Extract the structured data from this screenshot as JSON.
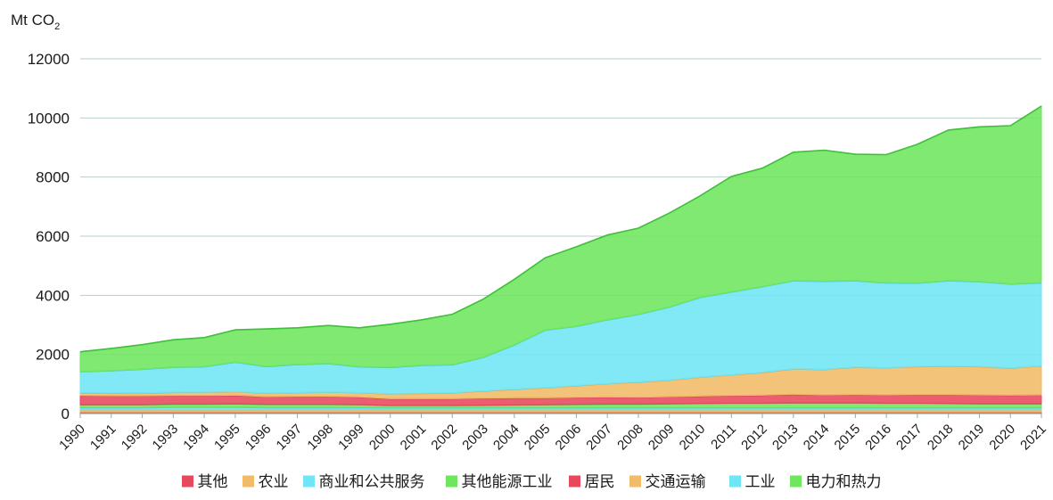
{
  "chart_data": {
    "type": "area",
    "stacked": true,
    "title": "",
    "unit_prefix": "Mt CO",
    "unit_subscript": "2",
    "xlabel": "",
    "ylabel": "Mt CO2",
    "ylim": [
      0,
      12000
    ],
    "yticks": [
      0,
      2000,
      4000,
      6000,
      8000,
      10000,
      12000
    ],
    "grid": true,
    "legend_position": "bottom-center",
    "x": [
      "1990",
      "1991",
      "1992",
      "1993",
      "1994",
      "1995",
      "1996",
      "1997",
      "1998",
      "1999",
      "2000",
      "2001",
      "2002",
      "2003",
      "2004",
      "2005",
      "2006",
      "2007",
      "2008",
      "2009",
      "2010",
      "2011",
      "2012",
      "2013",
      "2014",
      "2015",
      "2016",
      "2017",
      "2018",
      "2019",
      "2020",
      "2021"
    ],
    "series": [
      {
        "name": "其他",
        "color": "#e8485e",
        "values": [
          50,
          50,
          50,
          50,
          50,
          50,
          50,
          50,
          50,
          50,
          50,
          50,
          50,
          50,
          50,
          50,
          50,
          50,
          50,
          50,
          50,
          50,
          50,
          50,
          50,
          50,
          50,
          50,
          50,
          50,
          50,
          50
        ]
      },
      {
        "name": "农业",
        "color": "#f2bb68",
        "values": [
          80,
          80,
          80,
          80,
          80,
          80,
          80,
          80,
          80,
          80,
          80,
          80,
          80,
          80,
          80,
          80,
          80,
          80,
          80,
          80,
          80,
          80,
          80,
          80,
          80,
          80,
          80,
          80,
          80,
          80,
          80,
          80
        ]
      },
      {
        "name": "商业和公共服务",
        "color": "#6fe6f5",
        "values": [
          70,
          70,
          70,
          80,
          80,
          80,
          70,
          70,
          70,
          70,
          60,
          60,
          60,
          60,
          60,
          60,
          60,
          60,
          60,
          60,
          60,
          60,
          60,
          60,
          60,
          60,
          60,
          60,
          60,
          60,
          60,
          60
        ]
      },
      {
        "name": "其他能源工业",
        "color": "#6ee65e",
        "values": [
          100,
          100,
          100,
          110,
          110,
          120,
          110,
          110,
          110,
          100,
          80,
          80,
          80,
          90,
          100,
          110,
          120,
          130,
          130,
          140,
          150,
          160,
          160,
          170,
          170,
          170,
          160,
          160,
          150,
          140,
          140,
          140
        ]
      },
      {
        "name": "居民",
        "color": "#e8485e",
        "values": [
          310,
          300,
          300,
          290,
          290,
          290,
          260,
          270,
          270,
          260,
          230,
          230,
          230,
          240,
          240,
          230,
          240,
          240,
          230,
          240,
          250,
          260,
          270,
          290,
          270,
          280,
          280,
          290,
          300,
          300,
          290,
          300
        ]
      },
      {
        "name": "交通运输",
        "color": "#f2bb68",
        "values": [
          90,
          95,
          100,
          105,
          110,
          120,
          120,
          130,
          140,
          150,
          160,
          180,
          200,
          240,
          290,
          340,
          390,
          450,
          510,
          560,
          640,
          700,
          770,
          860,
          860,
          930,
          920,
          950,
          960,
          960,
          920,
          980
        ]
      },
      {
        "name": "工业",
        "color": "#6fe6f5",
        "values": [
          720,
          750,
          800,
          850,
          860,
          1000,
          900,
          950,
          970,
          870,
          900,
          950,
          950,
          1140,
          1500,
          1950,
          2010,
          2160,
          2290,
          2470,
          2700,
          2800,
          2900,
          2980,
          2980,
          2920,
          2870,
          2820,
          2890,
          2870,
          2840,
          2810
        ]
      },
      {
        "name": "电力和热力",
        "color": "#6ee65e",
        "values": [
          670,
          760,
          830,
          930,
          990,
          1090,
          1270,
          1240,
          1290,
          1320,
          1460,
          1540,
          1710,
          1970,
          2220,
          2450,
          2690,
          2870,
          2920,
          3180,
          3440,
          3910,
          4010,
          4350,
          4440,
          4280,
          4340,
          4700,
          5100,
          5240,
          5360,
          5980
        ]
      }
    ]
  }
}
